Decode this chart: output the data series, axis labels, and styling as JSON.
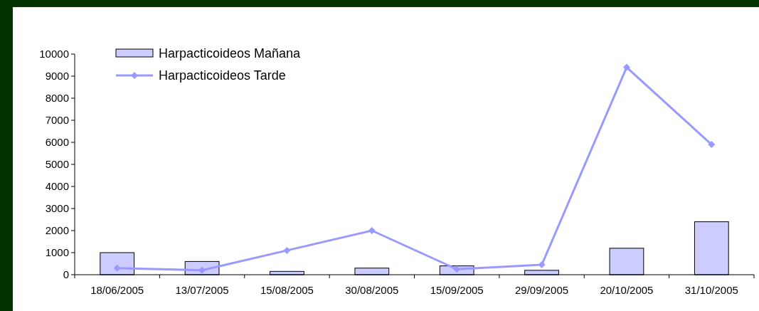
{
  "chart_data": {
    "type": "bar",
    "categories": [
      "18/06/2005",
      "13/07/2005",
      "15/08/2005",
      "30/08/2005",
      "15/09/2005",
      "29/09/2005",
      "20/10/2005",
      "31/10/2005"
    ],
    "series": [
      {
        "name": "Harpacticoideos Mañana",
        "color": "#ccccff",
        "values": [
          1000,
          600,
          150,
          300,
          400,
          200,
          1200,
          2400
        ]
      },
      {
        "name": "Harpacticoideos Tarde",
        "type": "line",
        "color": "#9999ff",
        "values": [
          300,
          200,
          1100,
          2000,
          250,
          450,
          9400,
          5900
        ]
      }
    ],
    "ylim": [
      0,
      10000
    ],
    "yticks": [
      0,
      1000,
      2000,
      3000,
      4000,
      5000,
      6000,
      7000,
      8000,
      9000,
      10000
    ],
    "legend": "top left",
    "marker": "diamond",
    "grid": false
  }
}
